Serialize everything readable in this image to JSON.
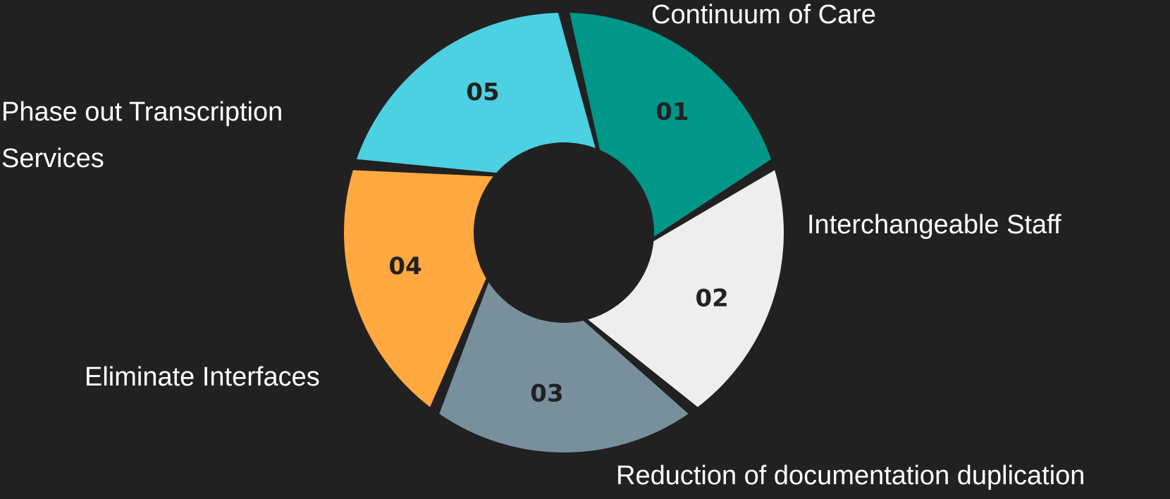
{
  "segments": [
    {
      "number": "01",
      "label": "Continuum of Care",
      "color": "#009688",
      "text_color": "#212121"
    },
    {
      "number": "02",
      "label": "Interchangeable Staff",
      "color": "#eeeeee",
      "text_color": "#212121"
    },
    {
      "number": "03",
      "label": "Reduction of documentation duplication",
      "color": "#78909c",
      "text_color": "#212121"
    },
    {
      "number": "04",
      "label": "Eliminate Interfaces",
      "color": "#ffa940",
      "text_color": "#212121"
    },
    {
      "number": "05",
      "label": "Phase out Transcription Services",
      "color": "#4dd0e1",
      "text_color": "#212121"
    }
  ],
  "background": "#212121"
}
